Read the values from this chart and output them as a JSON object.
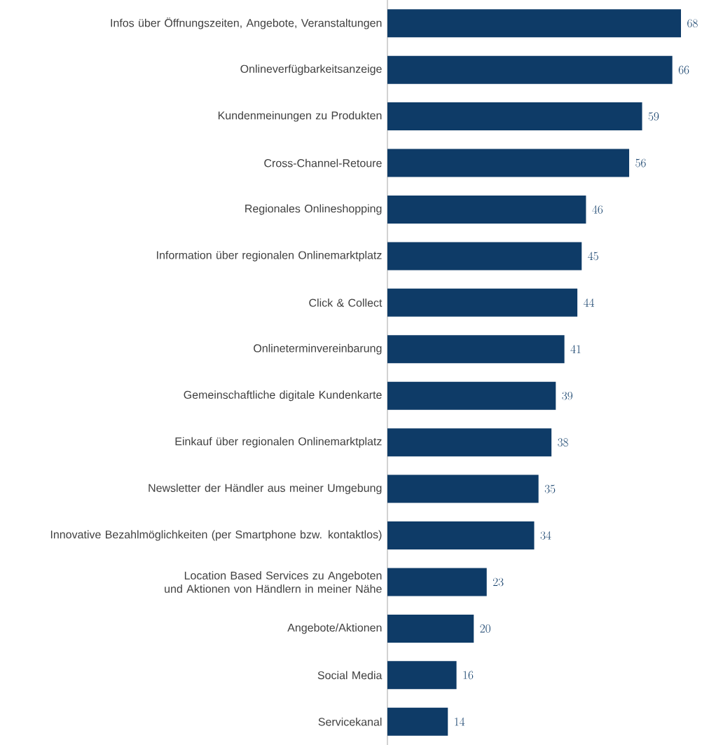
{
  "chart_data": {
    "type": "bar",
    "orientation": "horizontal",
    "color": "#0e3b67",
    "data_labels": true,
    "categories": [
      "Infos über Öffnungszeiten, Angebote, Veranstaltungen",
      "Onlineverfügbarkeitsanzeige",
      "Kundenmeinungen zu Produkten",
      "Cross-Channel-Retoure",
      "Regionales Onlineshopping",
      "Information über regionalen Onlinemarktplatz",
      "Click & Collect",
      "Onlineterminvereinbarung",
      "Gemeinschaftliche digitale Kundenkarte",
      "Einkauf über regionalen Onlinemarktplatz",
      "Newsletter der Händler aus meiner Umgebung",
      "Innovative Bezahlmöglichkeiten (per Smartphone bzw. kontaktlos)",
      "Location Based Services zu Angeboten und Aktionen von Händlern in meiner Nähe",
      "Angebote/Aktionen",
      "Social Media",
      "Servicekanal"
    ],
    "values": [
      68,
      66,
      59,
      56,
      46,
      45,
      44,
      41,
      39,
      38,
      35,
      34,
      23,
      20,
      16,
      14
    ]
  }
}
